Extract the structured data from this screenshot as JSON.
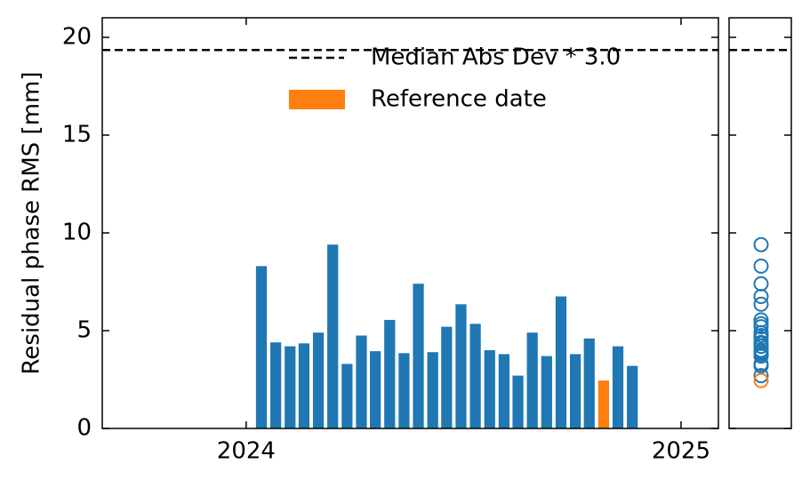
{
  "chart_data": {
    "type": "bar",
    "ylabel": "Residual phase RMS [mm]",
    "x": [
      2024.035,
      2024.068,
      2024.101,
      2024.133,
      2024.166,
      2024.199,
      2024.232,
      2024.265,
      2024.297,
      2024.33,
      2024.363,
      2024.396,
      2024.429,
      2024.461,
      2024.494,
      2024.527,
      2024.56,
      2024.593,
      2024.625,
      2024.658,
      2024.691,
      2024.724,
      2024.757,
      2024.789,
      2024.855,
      2024.888
    ],
    "values": [
      8.3,
      4.4,
      4.2,
      4.35,
      4.9,
      9.4,
      3.3,
      4.75,
      3.95,
      5.55,
      3.85,
      7.4,
      3.9,
      5.2,
      6.35,
      5.35,
      4.0,
      3.8,
      2.7,
      4.9,
      3.7,
      6.75,
      3.8,
      4.6,
      4.2,
      3.2
    ],
    "color": "#1f77b4",
    "reference": {
      "name": "Reference date",
      "x": 2024.822,
      "value": 2.45,
      "color": "#ff7f0e"
    },
    "threshold": {
      "name": "Median Abs Dev * 3.0",
      "value": 19.35,
      "color": "#000000"
    },
    "xlim": [
      2023.669,
      2025.086
    ],
    "xticks": [
      2024,
      2025
    ],
    "ylim": [
      0,
      21
    ],
    "yticks": [
      0,
      5,
      10,
      15,
      20
    ],
    "legend": "upper right"
  }
}
